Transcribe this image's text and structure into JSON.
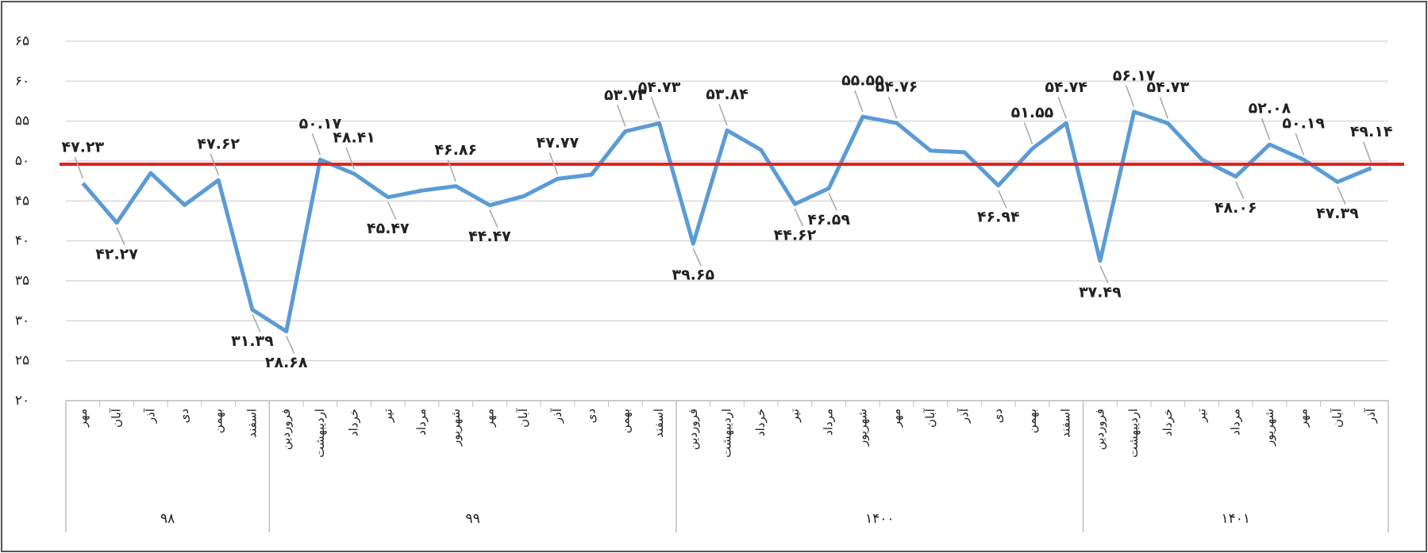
{
  "chart_data": {
    "type": "line",
    "categories": [
      "مهر",
      "آبان",
      "آذر",
      "دی",
      "بهمن",
      "اسفند",
      "فروردین",
      "اردیبهشت",
      "خرداد",
      "تیر",
      "مرداد",
      "شهریور",
      "مهر",
      "آبان",
      "آذر",
      "دی",
      "بهمن",
      "اسفند",
      "فروردین",
      "اردیبهشت",
      "خرداد",
      "تیر",
      "مرداد",
      "شهریور",
      "مهر",
      "آبان",
      "آذر",
      "دی",
      "بهمن",
      "اسفند",
      "فروردین",
      "اردیبهشت",
      "خرداد",
      "تیر",
      "مرداد",
      "شهریور",
      "مهر",
      "آبان",
      "آذر"
    ],
    "groups": [
      {
        "label": "۹۸",
        "count": 6
      },
      {
        "label": "۹۹",
        "count": 12
      },
      {
        "label": "۱۴۰۰",
        "count": 12
      },
      {
        "label": "۱۴۰۱",
        "count": 9
      }
    ],
    "series": [
      {
        "color": "#5b9bd5",
        "values": [
          47.23,
          42.27,
          48.5,
          44.5,
          47.62,
          31.39,
          28.68,
          50.17,
          48.41,
          45.47,
          46.3,
          46.86,
          44.47,
          45.6,
          47.77,
          48.3,
          53.73,
          54.73,
          39.65,
          53.84,
          51.4,
          44.62,
          46.59,
          55.55,
          54.76,
          51.3,
          51.1,
          46.94,
          51.55,
          54.74,
          37.49,
          56.17,
          54.73,
          50.2,
          48.06,
          52.08,
          50.19,
          47.39,
          49.14
        ],
        "value_labels": [
          "۴۷.۲۳",
          "۴۲.۲۷",
          null,
          null,
          "۴۷.۶۲",
          "۳۱.۳۹",
          "۲۸.۶۸",
          "۵۰.۱۷",
          "۴۸.۴۱",
          "۴۵.۴۷",
          null,
          "۴۶.۸۶",
          "۴۴.۴۷",
          null,
          "۴۷.۷۷",
          null,
          "۵۳.۷۳",
          "۵۴.۷۳",
          "۳۹.۶۵",
          "۵۳.۸۴",
          null,
          "۴۴.۶۲",
          "۴۶.۵۹",
          "۵۵.۵۵",
          "۵۴.۷۶",
          null,
          null,
          "۴۶.۹۴",
          "۵۱.۵۵",
          "۵۴.۷۴",
          "۳۷.۴۹",
          "۵۶.۱۷",
          "۵۴.۷۳",
          null,
          "۴۸.۰۶",
          "۵۲.۰۸",
          "۵۰.۱۹",
          "۴۷.۳۹",
          "۴۹.۱۴"
        ]
      }
    ],
    "reference_line": {
      "value": 49.6,
      "color": "#e32222"
    },
    "ylim": [
      20,
      65
    ],
    "yticks": [
      {
        "value": 20,
        "label": "۲۰"
      },
      {
        "value": 25,
        "label": "۲۵"
      },
      {
        "value": 30,
        "label": "۳۰"
      },
      {
        "value": 35,
        "label": "۳۵"
      },
      {
        "value": 40,
        "label": "۴۰"
      },
      {
        "value": 45,
        "label": "۴۵"
      },
      {
        "value": 50,
        "label": "۵۰"
      },
      {
        "value": 55,
        "label": "۵۵"
      },
      {
        "value": 60,
        "label": "۶۰"
      },
      {
        "value": 65,
        "label": "۶۵"
      }
    ],
    "grid": true
  }
}
